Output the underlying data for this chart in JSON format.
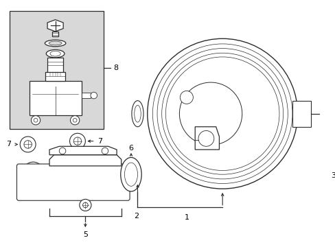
{
  "bg_color": "#ffffff",
  "line_color": "#2b2b2b",
  "shaded_box_color": "#d8d8d8",
  "label_color": "#000000",
  "fig_width": 4.89,
  "fig_height": 3.6,
  "dpi": 100
}
